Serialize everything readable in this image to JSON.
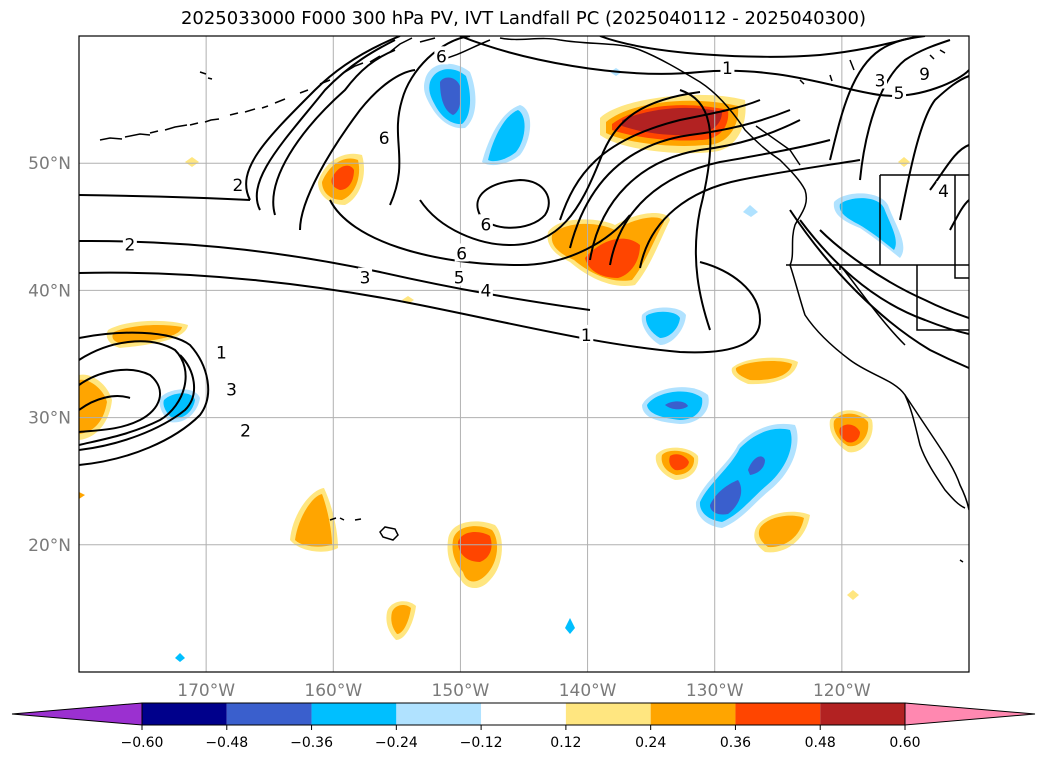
{
  "title": "2025033000 F000 300 hPa PV, IVT Landfall PC (2025040112 - 2025040300)",
  "map": {
    "lon_range": [
      -180,
      -110
    ],
    "lat_range": [
      10,
      60
    ],
    "lon_ticks": [
      {
        "lon": -170,
        "label": "170°W"
      },
      {
        "lon": -160,
        "label": "160°W"
      },
      {
        "lon": -150,
        "label": "150°W"
      },
      {
        "lon": -140,
        "label": "140°W"
      },
      {
        "lon": -130,
        "label": "130°W"
      },
      {
        "lon": -120,
        "label": "120°W"
      }
    ],
    "lat_ticks": [
      {
        "lat": 20,
        "label": "20°N"
      },
      {
        "lat": 30,
        "label": "30°N"
      },
      {
        "lat": 40,
        "label": "40°N"
      },
      {
        "lat": 50,
        "label": "50°N"
      }
    ],
    "grid": true,
    "pv_contour_labels": [
      {
        "text": "1",
        "lon": -168.8,
        "lat": 35.1
      },
      {
        "text": "3",
        "lon": -168.0,
        "lat": 32.2
      },
      {
        "text": "2",
        "lon": -166.9,
        "lat": 29.0
      },
      {
        "text": "2",
        "lon": -176.0,
        "lat": 43.6
      },
      {
        "text": "2",
        "lon": -167.5,
        "lat": 48.3
      },
      {
        "text": "3",
        "lon": -157.5,
        "lat": 41.0
      },
      {
        "text": "5",
        "lon": -150.1,
        "lat": 41.0
      },
      {
        "text": "6",
        "lon": -149.9,
        "lat": 42.9
      },
      {
        "text": "4",
        "lon": -148.0,
        "lat": 40.0
      },
      {
        "text": "6",
        "lon": -148.0,
        "lat": 45.2
      },
      {
        "text": "6",
        "lon": -156.0,
        "lat": 52.0
      },
      {
        "text": "6",
        "lon": -151.5,
        "lat": 58.4
      },
      {
        "text": "1",
        "lon": -140.1,
        "lat": 36.5
      },
      {
        "text": "1",
        "lon": -129.0,
        "lat": 57.5
      },
      {
        "text": "3",
        "lon": -117.0,
        "lat": 56.5
      },
      {
        "text": "9",
        "lon": -113.5,
        "lat": 57.0
      },
      {
        "text": "5",
        "lon": -115.5,
        "lat": 55.5
      },
      {
        "text": "4",
        "lon": -112.0,
        "lat": 47.8
      }
    ]
  },
  "colorbar": {
    "levels": [
      "−0.60",
      "−0.48",
      "−0.36",
      "−0.24",
      "−0.12",
      "0.12",
      "0.24",
      "0.36",
      "0.48",
      "0.60"
    ],
    "colors": [
      "#9b30d0",
      "#00008b",
      "#3a5fcd",
      "#00bfff",
      "#b0e2ff",
      "#ffffff",
      "#ffe680",
      "#ffa500",
      "#ff4500",
      "#b22222",
      "#ff88b0"
    ],
    "extend": "both"
  }
}
